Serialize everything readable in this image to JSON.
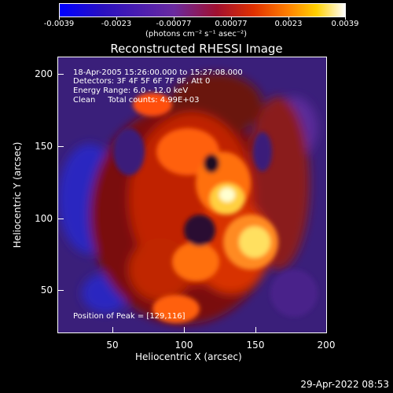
{
  "colorbar": {
    "tick_labels": [
      "-0.0039",
      "-0.0023",
      "-0.00077",
      "0.00077",
      "0.0023",
      "0.0039"
    ],
    "units": "(photons cm⁻² s⁻¹ asec⁻²)"
  },
  "title": "Reconstructed RHESSI Image",
  "annotations": {
    "time": "18-Apr-2005 15:26:00.000 to 15:27:08.000",
    "detectors": "Detectors: 3F 4F 5F 6F 7F 8F, Att 0",
    "energy": "Energy Range: 6.0 - 12.0 keV",
    "method": "Clean     Total counts: 4.99E+03",
    "peak": "Position of Peak = [129,116]"
  },
  "axes": {
    "xlabel": "Heliocentric X (arcsec)",
    "ylabel": "Heliocentric Y (arcsec)",
    "xticks": [
      "50",
      "100",
      "150",
      "200"
    ],
    "yticks": [
      "200",
      "150",
      "100",
      "50"
    ]
  },
  "footer": "29-Apr-2022 08:53",
  "colors": {
    "background": "#000000",
    "text": "#ffffff"
  }
}
